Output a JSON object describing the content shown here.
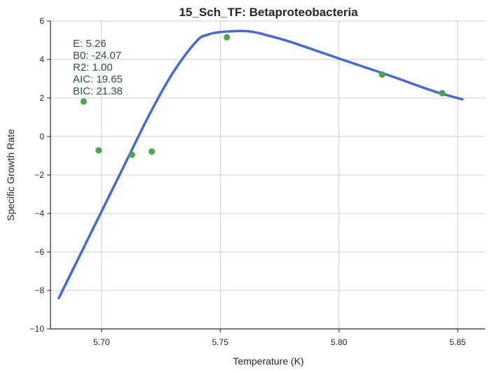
{
  "chart_data": {
    "type": "line",
    "title": "15_Sch_TF: Betaproteobacteria",
    "xlabel": "Temperature (K)",
    "ylabel": "Specific Growth Rate",
    "xlim": [
      5.6785,
      5.8615
    ],
    "ylim": [
      -10,
      6
    ],
    "x_ticks": [
      5.7,
      5.75,
      5.8,
      5.85
    ],
    "x_tick_labels": [
      "5.70",
      "5.75",
      "5.80",
      "5.85"
    ],
    "y_ticks": [
      -10,
      -8,
      -6,
      -4,
      -2,
      0,
      2,
      4,
      6
    ],
    "y_tick_labels": [
      "−10",
      "−8",
      "−6",
      "−4",
      "−2",
      "0",
      "2",
      "4",
      "6"
    ],
    "grid": true,
    "series": [
      {
        "kind": "line",
        "color": "#4169E1",
        "x": [
          5.682,
          5.69,
          5.7,
          5.71,
          5.72,
          5.73,
          5.74,
          5.745,
          5.75,
          5.755,
          5.758,
          5.762,
          5.766,
          5.77,
          5.78,
          5.8,
          5.82,
          5.84,
          5.852
        ],
        "y": [
          -8.4,
          -6.4,
          -3.9,
          -1.4,
          1.1,
          3.3,
          4.95,
          5.3,
          5.42,
          5.47,
          5.48,
          5.46,
          5.38,
          5.25,
          4.9,
          4.05,
          3.22,
          2.35,
          1.93
        ]
      },
      {
        "kind": "scatter",
        "color": "#4DA64D",
        "x": [
          5.6925,
          5.6988,
          5.7128,
          5.7212,
          5.7528,
          5.8182,
          5.8435
        ],
        "y": [
          1.82,
          -0.72,
          -0.95,
          -0.78,
          5.15,
          3.22,
          2.25
        ]
      }
    ],
    "annotations": [
      "E:  5.26",
      "B0:  -24.07",
      "R2:  1.00",
      "AIC: 19.65",
      "BIC: 21.38"
    ]
  }
}
